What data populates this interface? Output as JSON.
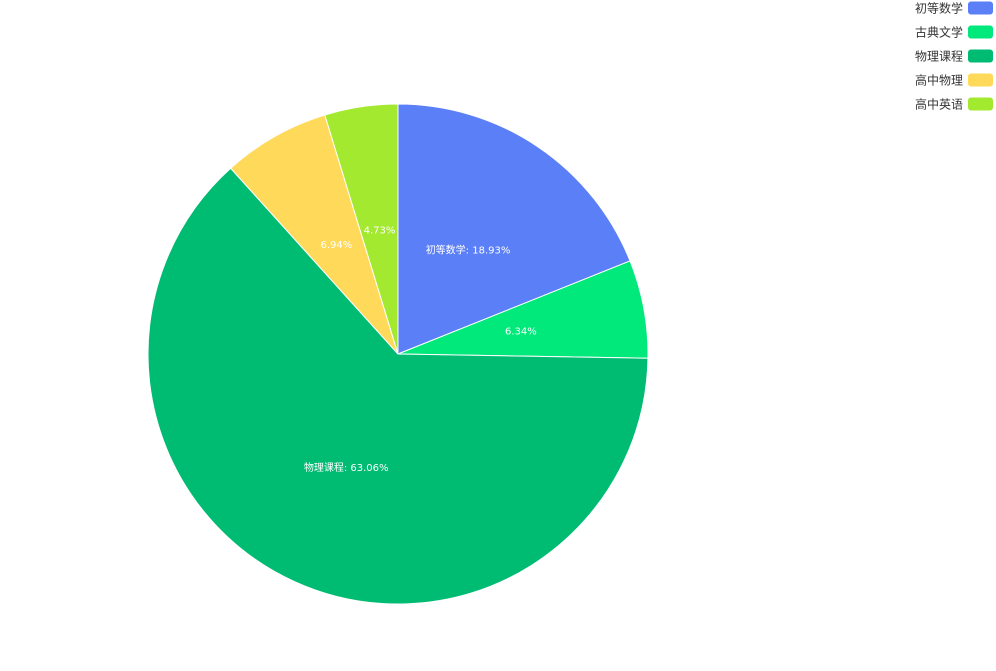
{
  "chart_data": {
    "type": "pie",
    "categories": [
      "初等数学",
      "古典文学",
      "物理课程",
      "高中物理",
      "高中英语"
    ],
    "values": [
      18.93,
      6.34,
      63.06,
      6.94,
      4.73
    ],
    "value_labels": [
      "初等数学: 18.93%",
      "6.34%",
      "物理课程: 63.06%",
      "6.94%",
      "4.73%"
    ],
    "colors": [
      "#5b7ff6",
      "#00e97a",
      "#00bb72",
      "#ffd959",
      "#a3e92f"
    ],
    "legend": "top-right"
  }
}
